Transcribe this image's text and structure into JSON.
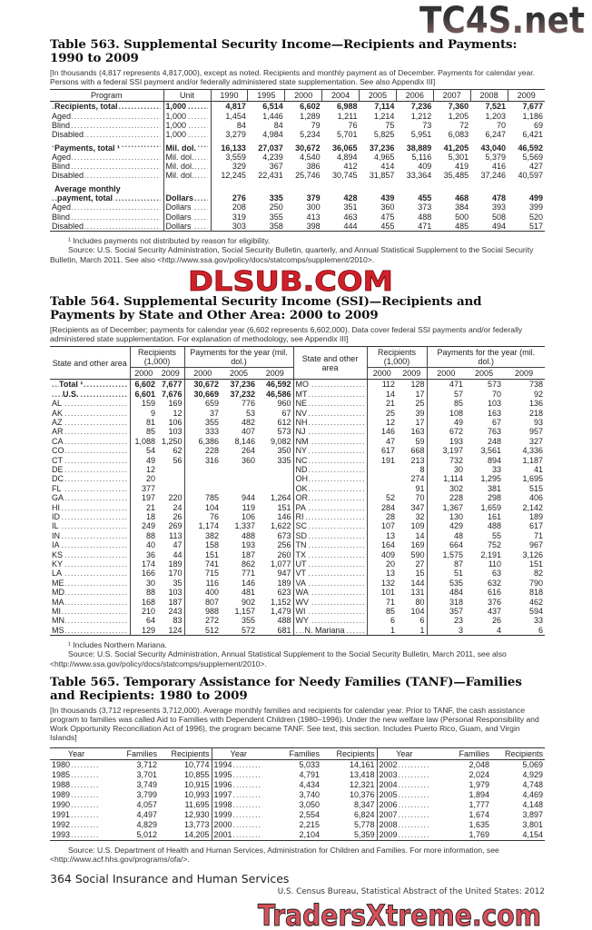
{
  "watermarks": {
    "top": "TC4S.net",
    "middle": "DLSUB.COM",
    "bottom": "TradersXtreme.com"
  },
  "t563": {
    "title": "Table 563. Supplemental Security Income—Recipients and Payments: 1990 to 2009",
    "note": "[In thousands (4,817 represents 4,817,000), except as noted. Recipients and monthly payment as of December. Payments for calendar year. Persons with a federal SSI payment and/or federally administered state supplementation. See also Appendix III]",
    "headers": [
      "Program",
      "Unit",
      "1990",
      "1995",
      "2000",
      "2004",
      "2005",
      "2006",
      "2007",
      "2008",
      "2009"
    ],
    "rows": [
      {
        "label": "Recipients, total",
        "unit": "1,000",
        "bold": true,
        "values": [
          "4,817",
          "6,514",
          "6,602",
          "6,988",
          "7,114",
          "7,236",
          "7,360",
          "7,521",
          "7,677"
        ]
      },
      {
        "label": "Aged",
        "unit": "1,000",
        "values": [
          "1,454",
          "1,446",
          "1,289",
          "1,211",
          "1,214",
          "1,212",
          "1,205",
          "1,203",
          "1,186"
        ]
      },
      {
        "label": "Blind",
        "unit": "1,000",
        "values": [
          "84",
          "84",
          "79",
          "76",
          "75",
          "73",
          "72",
          "70",
          "69"
        ]
      },
      {
        "label": "Disabled",
        "unit": "1,000",
        "values": [
          "3,279",
          "4,984",
          "5,234",
          "5,701",
          "5,825",
          "5,951",
          "6,083",
          "6,247",
          "6,421"
        ]
      },
      {
        "label": "Payments, total ¹",
        "unit": "Mil. dol.",
        "bold": true,
        "gap": true,
        "values": [
          "16,133",
          "27,037",
          "30,672",
          "36,065",
          "37,236",
          "38,889",
          "41,205",
          "43,040",
          "46,592"
        ]
      },
      {
        "label": "Aged",
        "unit": "Mil. dol.",
        "values": [
          "3,559",
          "4,239",
          "4,540",
          "4,894",
          "4,965",
          "5,116",
          "5,301",
          "5,379",
          "5,569"
        ]
      },
      {
        "label": "Blind",
        "unit": "Mil. dol.",
        "values": [
          "329",
          "367",
          "386",
          "412",
          "414",
          "409",
          "419",
          "416",
          "427"
        ]
      },
      {
        "label": "Disabled",
        "unit": "Mil. dol.",
        "values": [
          "12,245",
          "22,431",
          "25,746",
          "30,745",
          "31,857",
          "33,364",
          "35,485",
          "37,246",
          "40,597"
        ]
      },
      {
        "label": "Average monthly",
        "heading": true,
        "gap": true
      },
      {
        "label": "payment, total",
        "unit": "Dollars",
        "bold": true,
        "indent": true,
        "values": [
          "276",
          "335",
          "379",
          "428",
          "439",
          "455",
          "468",
          "478",
          "499"
        ]
      },
      {
        "label": "Aged",
        "unit": "Dollars",
        "values": [
          "208",
          "250",
          "300",
          "351",
          "360",
          "373",
          "384",
          "393",
          "399"
        ]
      },
      {
        "label": "Blind",
        "unit": "Dollars",
        "values": [
          "319",
          "355",
          "413",
          "463",
          "475",
          "488",
          "500",
          "508",
          "520"
        ]
      },
      {
        "label": "Disabled",
        "unit": "Dollars",
        "values": [
          "303",
          "358",
          "398",
          "444",
          "455",
          "471",
          "485",
          "494",
          "517"
        ]
      }
    ],
    "footnote": "¹ Includes payments not distributed by reason for eligibility.",
    "source": "Source: U.S. Social Security Administration, Social Security Bulletin, quarterly, and Annual Statistical Supplement to the Social Security Bulletin, March 2011. See also <http://www.ssa.gov/policy/docs/statcomps/supplement/2010>."
  },
  "t564": {
    "title": "Table 564. Supplemental Security Income (SSI)—Recipients and Payments by State and Other Area: 2000 to 2009",
    "note": "[Recipients as of December; payments for calendar year (6,602 represents 6,602,000). Data cover federal SSI payments and/or federally administered state supplementation. For explanation of methodology, see Appendix III]",
    "head_state": "State and other area",
    "head_recipients": "Recipients (1,000)",
    "head_payments": "Payments for the year (mil. dol.)",
    "years_rec": [
      "2000",
      "2009"
    ],
    "years_pay": [
      "2000",
      "2005",
      "2009"
    ],
    "left": [
      [
        "Total ¹",
        "6,602",
        "7,677",
        "30,672",
        "37,236",
        "46,592"
      ],
      [
        "U.S.",
        "6,601",
        "7,676",
        "30,669",
        "37,232",
        "46,586"
      ],
      [
        "AL",
        "159",
        "169",
        "659",
        "776",
        "960"
      ],
      [
        "AK",
        "9",
        "12",
        "37",
        "53",
        "67"
      ],
      [
        "AZ",
        "81",
        "106",
        "355",
        "482",
        "612"
      ],
      [
        "AR",
        "85",
        "103",
        "333",
        "407",
        "573"
      ],
      [
        "CA",
        "1,088",
        "1,250",
        "6,386",
        "8,146",
        "9,082"
      ],
      [
        "CO",
        "54",
        "62",
        "228",
        "264",
        "350"
      ],
      [
        "CT",
        "49",
        "56",
        "316",
        "360",
        "335"
      ],
      [
        "DE",
        "12",
        "",
        "",
        "",
        ""
      ],
      [
        "DC",
        "20",
        "",
        "",
        "",
        ""
      ],
      [
        "FL",
        "377",
        "",
        "",
        "",
        ""
      ],
      [
        "GA",
        "197",
        "220",
        "785",
        "944",
        "1,264"
      ],
      [
        "HI",
        "21",
        "24",
        "104",
        "119",
        "151"
      ],
      [
        "ID",
        "18",
        "26",
        "76",
        "106",
        "146"
      ],
      [
        "IL",
        "249",
        "269",
        "1,174",
        "1,337",
        "1,622"
      ],
      [
        "IN",
        "88",
        "113",
        "382",
        "488",
        "673"
      ],
      [
        "IA",
        "40",
        "47",
        "158",
        "193",
        "256"
      ],
      [
        "KS",
        "36",
        "44",
        "151",
        "187",
        "260"
      ],
      [
        "KY",
        "174",
        "189",
        "741",
        "862",
        "1,077"
      ],
      [
        "LA",
        "166",
        "170",
        "715",
        "771",
        "947"
      ],
      [
        "ME",
        "30",
        "35",
        "116",
        "146",
        "189"
      ],
      [
        "MD",
        "88",
        "103",
        "400",
        "481",
        "623"
      ],
      [
        "MA",
        "168",
        "187",
        "807",
        "902",
        "1,152"
      ],
      [
        "MI",
        "210",
        "243",
        "988",
        "1,157",
        "1,479"
      ],
      [
        "MN",
        "64",
        "83",
        "272",
        "355",
        "488"
      ],
      [
        "MS",
        "129",
        "124",
        "512",
        "572",
        "681"
      ]
    ],
    "right": [
      [
        "MO",
        "112",
        "128",
        "471",
        "573",
        "738"
      ],
      [
        "MT",
        "14",
        "17",
        "57",
        "70",
        "92"
      ],
      [
        "NE",
        "21",
        "25",
        "85",
        "103",
        "136"
      ],
      [
        "NV",
        "25",
        "39",
        "108",
        "163",
        "218"
      ],
      [
        "NH",
        "12",
        "17",
        "49",
        "67",
        "93"
      ],
      [
        "NJ",
        "146",
        "163",
        "672",
        "763",
        "957"
      ],
      [
        "NM",
        "47",
        "59",
        "193",
        "248",
        "327"
      ],
      [
        "NY",
        "617",
        "668",
        "3,197",
        "3,561",
        "4,336"
      ],
      [
        "NC",
        "191",
        "213",
        "732",
        "894",
        "1,187"
      ],
      [
        "ND",
        "",
        "8",
        "30",
        "33",
        "41"
      ],
      [
        "OH",
        "",
        "274",
        "1,114",
        "1,295",
        "1,695"
      ],
      [
        "OK",
        "",
        "91",
        "302",
        "381",
        "515"
      ],
      [
        "OR",
        "52",
        "70",
        "228",
        "298",
        "406"
      ],
      [
        "PA",
        "284",
        "347",
        "1,367",
        "1,659",
        "2,142"
      ],
      [
        "RI",
        "28",
        "32",
        "130",
        "161",
        "189"
      ],
      [
        "SC",
        "107",
        "109",
        "429",
        "488",
        "617"
      ],
      [
        "SD",
        "13",
        "14",
        "48",
        "55",
        "71"
      ],
      [
        "TN",
        "164",
        "169",
        "664",
        "752",
        "967"
      ],
      [
        "TX",
        "409",
        "590",
        "1,575",
        "2,191",
        "3,126"
      ],
      [
        "UT",
        "20",
        "27",
        "87",
        "110",
        "151"
      ],
      [
        "VT",
        "13",
        "15",
        "51",
        "63",
        "82"
      ],
      [
        "VA",
        "132",
        "144",
        "535",
        "632",
        "790"
      ],
      [
        "WA",
        "101",
        "131",
        "484",
        "616",
        "818"
      ],
      [
        "WV",
        "71",
        "80",
        "318",
        "376",
        "462"
      ],
      [
        "WI",
        "85",
        "104",
        "357",
        "437",
        "594"
      ],
      [
        "WY",
        "6",
        "6",
        "23",
        "26",
        "33"
      ],
      [
        "N. Mariana",
        "1",
        "1",
        "3",
        "4",
        "6"
      ]
    ],
    "footnote": "¹ Includes Northern Mariana.",
    "source": "Source: U.S. Social Security Administration, Annual Statistical Supplement to the Social Security Bulletin, March 2011, see also <http://www.ssa.gov/policy/docs/statcomps/supplement/2010>."
  },
  "t565": {
    "title": "Table 565. Temporary Assistance for Needy Families (TANF)—Families and Recipients: 1980 to 2009",
    "note": "[In thousands (3,712 represents 3,712,000). Average monthly families and recipients for calendar year. Prior to TANF, the cash assistance program to families was called Aid to Families with Dependent Children (1980–1996). Under the new welfare law (Personal Responsibility and Work Opportunity Reconciliation Act of 1996), the program became TANF. See text, this section. Includes Puerto Rico, Guam, and Virgin Islands]",
    "headers": [
      "Year",
      "Families",
      "Recipients"
    ],
    "rows": [
      [
        "1980",
        "3,712",
        "10,774",
        "1994",
        "5,033",
        "14,161",
        "2002",
        "2,048",
        "5,069"
      ],
      [
        "1985",
        "3,701",
        "10,855",
        "1995",
        "4,791",
        "13,418",
        "2003",
        "2,024",
        "4,929"
      ],
      [
        "1988",
        "3,749",
        "10,915",
        "1996",
        "4,434",
        "12,321",
        "2004",
        "1,979",
        "4,748"
      ],
      [
        "1989",
        "3,799",
        "10,993",
        "1997",
        "3,740",
        "10,376",
        "2005",
        "1,894",
        "4,469"
      ],
      [
        "1990",
        "4,057",
        "11,695",
        "1998",
        "3,050",
        "8,347",
        "2006",
        "1,777",
        "4,148"
      ],
      [
        "1991",
        "4,497",
        "12,930",
        "1999",
        "2,554",
        "6,824",
        "2007",
        "1,674",
        "3,897"
      ],
      [
        "1992",
        "4,829",
        "13,773",
        "2000",
        "2,215",
        "5,778",
        "2008",
        "1,635",
        "3,801"
      ],
      [
        "1993",
        "5,012",
        "14,205",
        "2001",
        "2,104",
        "5,359",
        "2009",
        "1,769",
        "4,154"
      ]
    ],
    "source": "Source: U.S. Department of Health and Human Services, Administration for Children and Families. For more information, see <http://www.acf.hhs.gov/programs/ofa/>."
  },
  "footer": {
    "page": "364  Social Insurance and Human Services",
    "publication": "U.S. Census Bureau, Statistical Abstract of the United States: 2012"
  }
}
